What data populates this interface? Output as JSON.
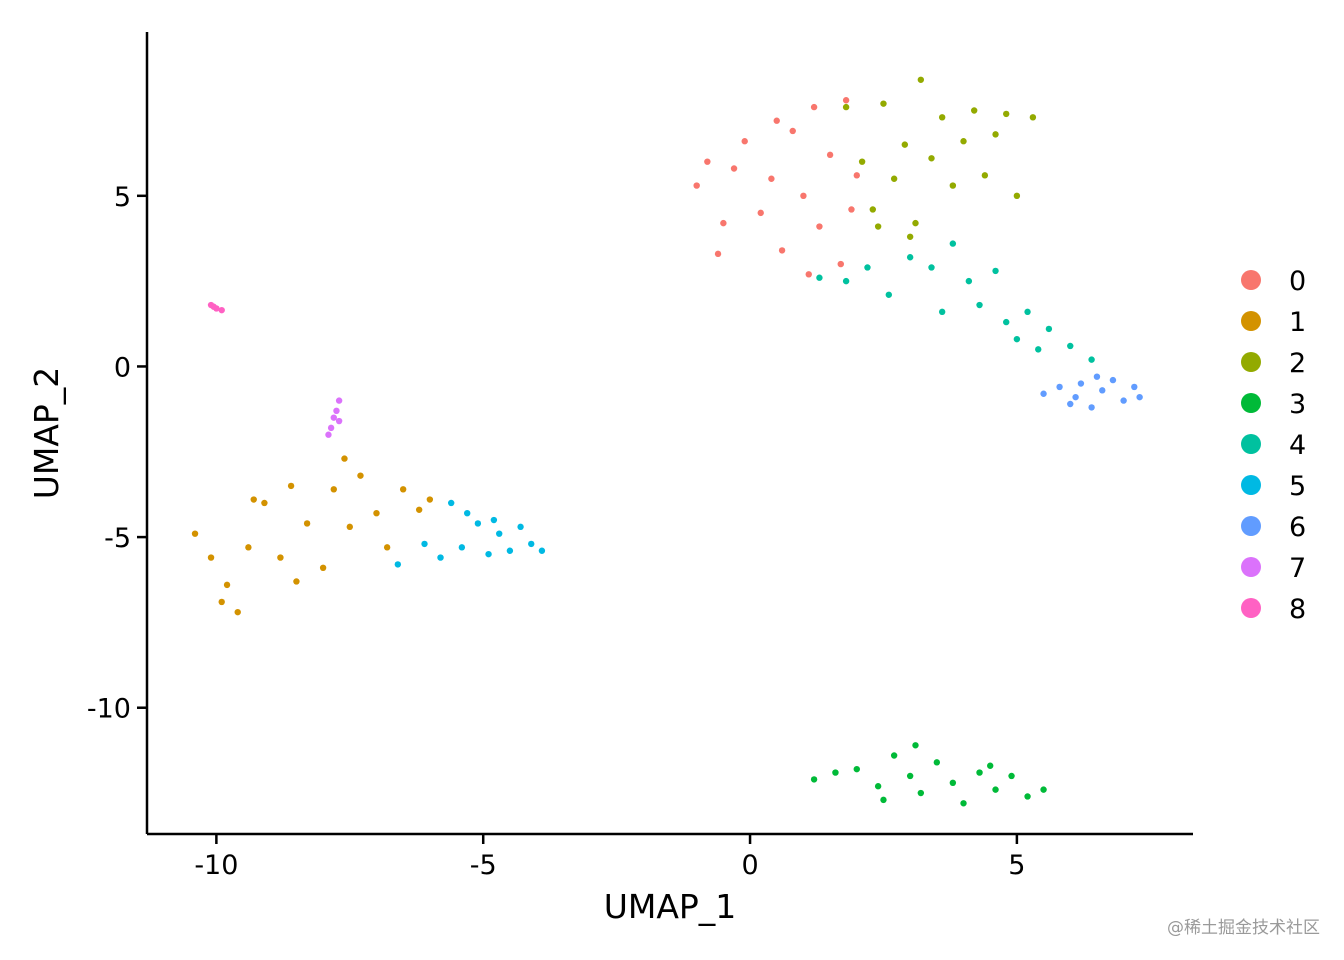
{
  "chart_data": {
    "type": "scatter",
    "xlabel": "UMAP_1",
    "ylabel": "UMAP_2",
    "xlim": [
      -11.3,
      8.3
    ],
    "ylim": [
      -13.7,
      9.8
    ],
    "x_ticks": [
      -10,
      -5,
      0,
      5
    ],
    "x_tick_labels": [
      "-10",
      "-5",
      "0",
      "5"
    ],
    "y_ticks": [
      5,
      0,
      -5,
      -10
    ],
    "y_tick_labels": [
      "5",
      "0",
      "-5",
      "-10"
    ],
    "grid": false,
    "legend_position": "right",
    "series": [
      {
        "name": "0",
        "color": "#F8766D",
        "points": [
          [
            -1.0,
            5.3
          ],
          [
            -0.8,
            6.0
          ],
          [
            -0.5,
            4.2
          ],
          [
            -0.3,
            5.8
          ],
          [
            -0.1,
            6.6
          ],
          [
            0.2,
            4.5
          ],
          [
            0.4,
            5.5
          ],
          [
            0.6,
            3.4
          ],
          [
            0.8,
            6.9
          ],
          [
            1.0,
            5.0
          ],
          [
            1.2,
            7.6
          ],
          [
            1.3,
            4.1
          ],
          [
            1.5,
            6.2
          ],
          [
            1.7,
            3.0
          ],
          [
            1.8,
            7.8
          ],
          [
            2.0,
            5.6
          ],
          [
            -0.6,
            3.3
          ],
          [
            0.5,
            7.2
          ],
          [
            1.1,
            2.7
          ],
          [
            1.9,
            4.6
          ]
        ]
      },
      {
        "name": "1",
        "color": "#D39200",
        "points": [
          [
            -10.4,
            -4.9
          ],
          [
            -10.1,
            -5.6
          ],
          [
            -9.8,
            -6.4
          ],
          [
            -9.6,
            -7.2
          ],
          [
            -9.4,
            -5.3
          ],
          [
            -9.1,
            -4.0
          ],
          [
            -8.8,
            -5.6
          ],
          [
            -8.6,
            -3.5
          ],
          [
            -8.3,
            -4.6
          ],
          [
            -8.0,
            -5.9
          ],
          [
            -7.8,
            -3.6
          ],
          [
            -7.5,
            -4.7
          ],
          [
            -7.3,
            -3.2
          ],
          [
            -7.0,
            -4.3
          ],
          [
            -6.8,
            -5.3
          ],
          [
            -6.5,
            -3.6
          ],
          [
            -6.2,
            -4.2
          ],
          [
            -6.0,
            -3.9
          ],
          [
            -9.9,
            -6.9
          ],
          [
            -8.5,
            -6.3
          ],
          [
            -7.6,
            -2.7
          ],
          [
            -9.3,
            -3.9
          ]
        ]
      },
      {
        "name": "2",
        "color": "#93AA00",
        "points": [
          [
            1.8,
            7.6
          ],
          [
            2.1,
            6.0
          ],
          [
            2.3,
            4.6
          ],
          [
            2.5,
            7.7
          ],
          [
            2.7,
            5.5
          ],
          [
            2.9,
            6.5
          ],
          [
            3.1,
            4.2
          ],
          [
            3.2,
            8.4
          ],
          [
            3.4,
            6.1
          ],
          [
            3.6,
            7.3
          ],
          [
            3.8,
            5.3
          ],
          [
            4.0,
            6.6
          ],
          [
            4.2,
            7.5
          ],
          [
            4.4,
            5.6
          ],
          [
            4.6,
            6.8
          ],
          [
            4.8,
            7.4
          ],
          [
            5.0,
            5.0
          ],
          [
            5.3,
            7.3
          ],
          [
            3.0,
            3.8
          ],
          [
            2.4,
            4.1
          ]
        ]
      },
      {
        "name": "3",
        "color": "#00BA38",
        "points": [
          [
            1.2,
            -12.1
          ],
          [
            1.6,
            -11.9
          ],
          [
            2.0,
            -11.8
          ],
          [
            2.4,
            -12.3
          ],
          [
            2.7,
            -11.4
          ],
          [
            3.0,
            -12.0
          ],
          [
            3.2,
            -12.5
          ],
          [
            3.5,
            -11.6
          ],
          [
            3.8,
            -12.2
          ],
          [
            4.0,
            -12.8
          ],
          [
            4.3,
            -11.9
          ],
          [
            4.6,
            -12.4
          ],
          [
            4.9,
            -12.0
          ],
          [
            5.2,
            -12.6
          ],
          [
            5.5,
            -12.4
          ],
          [
            3.1,
            -11.1
          ],
          [
            2.5,
            -12.7
          ],
          [
            4.5,
            -11.7
          ]
        ]
      },
      {
        "name": "4",
        "color": "#00C19F",
        "points": [
          [
            1.3,
            2.6
          ],
          [
            1.8,
            2.5
          ],
          [
            2.2,
            2.9
          ],
          [
            2.6,
            2.1
          ],
          [
            3.0,
            3.2
          ],
          [
            3.4,
            2.9
          ],
          [
            3.8,
            3.6
          ],
          [
            4.1,
            2.5
          ],
          [
            4.3,
            1.8
          ],
          [
            4.6,
            2.8
          ],
          [
            4.8,
            1.3
          ],
          [
            5.0,
            0.8
          ],
          [
            5.2,
            1.6
          ],
          [
            5.4,
            0.5
          ],
          [
            5.6,
            1.1
          ],
          [
            6.0,
            0.6
          ],
          [
            6.4,
            0.2
          ],
          [
            3.6,
            1.6
          ]
        ]
      },
      {
        "name": "5",
        "color": "#00B9E3",
        "points": [
          [
            -6.1,
            -5.2
          ],
          [
            -5.8,
            -5.6
          ],
          [
            -5.6,
            -4.0
          ],
          [
            -5.4,
            -5.3
          ],
          [
            -5.1,
            -4.6
          ],
          [
            -4.9,
            -5.5
          ],
          [
            -4.7,
            -4.9
          ],
          [
            -4.5,
            -5.4
          ],
          [
            -4.3,
            -4.7
          ],
          [
            -4.1,
            -5.2
          ],
          [
            -3.9,
            -5.4
          ],
          [
            -5.3,
            -4.3
          ],
          [
            -6.6,
            -5.8
          ],
          [
            -4.8,
            -4.5
          ]
        ]
      },
      {
        "name": "6",
        "color": "#619CFF",
        "points": [
          [
            5.5,
            -0.8
          ],
          [
            5.8,
            -0.6
          ],
          [
            6.0,
            -1.1
          ],
          [
            6.2,
            -0.5
          ],
          [
            6.4,
            -1.2
          ],
          [
            6.6,
            -0.7
          ],
          [
            6.8,
            -0.4
          ],
          [
            7.0,
            -1.0
          ],
          [
            7.2,
            -0.6
          ],
          [
            7.3,
            -0.9
          ],
          [
            6.5,
            -0.3
          ],
          [
            6.1,
            -0.9
          ]
        ]
      },
      {
        "name": "7",
        "color": "#DB72FB",
        "points": [
          [
            -7.7,
            -1.0
          ],
          [
            -7.75,
            -1.3
          ],
          [
            -7.8,
            -1.5
          ],
          [
            -7.85,
            -1.8
          ],
          [
            -7.9,
            -2.0
          ],
          [
            -7.7,
            -1.6
          ]
        ]
      },
      {
        "name": "8",
        "color": "#FF61C3",
        "points": [
          [
            -10.1,
            1.8
          ],
          [
            -10.0,
            1.7
          ],
          [
            -9.9,
            1.65
          ],
          [
            -10.05,
            1.75
          ]
        ]
      }
    ]
  },
  "watermark": "@稀土掘金技术社区"
}
